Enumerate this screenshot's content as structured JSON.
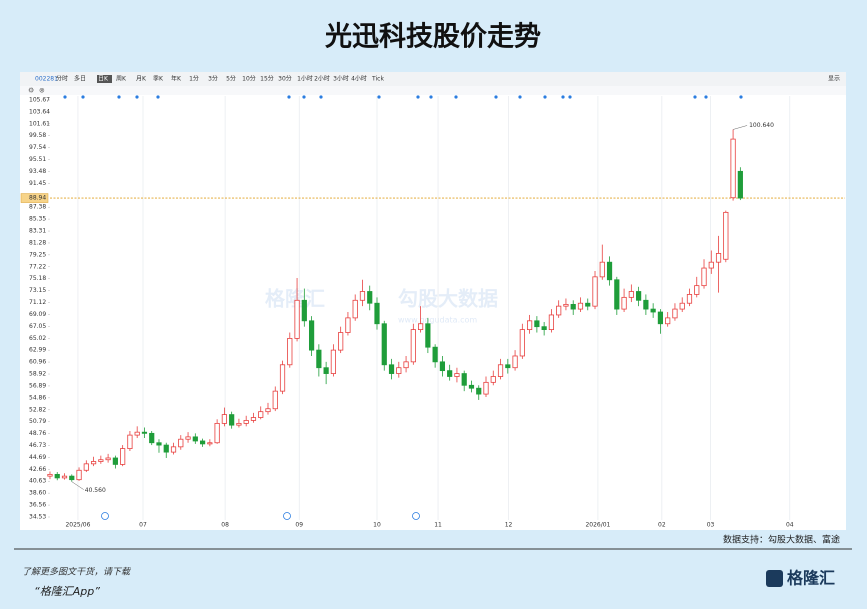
{
  "chart_data": {
    "type": "candlestick",
    "title": "光迅科技股价走势",
    "toolbar": {
      "code": "002281",
      "items": [
        "分时",
        "多日",
        "日K",
        "周K",
        "月K",
        "季K",
        "年K",
        "1分",
        "3分",
        "5分",
        "10分",
        "15分",
        "30分",
        "1小时",
        "2小时",
        "3小时",
        "4小时",
        "Tick"
      ],
      "right": "显示"
    },
    "up_color": "#e8403f",
    "down_color": "#1f9d3a",
    "open": [
      41.5,
      41.8,
      41.2,
      41.5,
      40.9,
      42.5,
      43.6,
      44.0,
      44.3,
      44.6,
      43.5,
      46.2,
      48.5,
      49.0,
      48.8,
      47.2,
      46.8,
      45.6,
      46.5,
      47.8,
      48.2,
      47.5,
      47.0,
      47.2,
      50.5,
      52.0,
      50.2,
      50.5,
      51.0,
      51.5,
      52.5,
      53.0,
      56.0,
      60.5,
      65.0,
      71.5,
      68.0,
      63.0,
      60.0,
      59.0,
      63.0,
      66.0,
      68.5,
      71.5,
      73.0,
      71.0,
      67.5,
      60.5,
      59.0,
      60.0,
      61.0,
      66.5,
      67.5,
      63.5,
      61.0,
      59.5,
      58.5,
      59.0,
      57.0,
      56.5,
      55.5,
      57.5,
      58.5,
      60.5,
      60.0,
      62.0,
      66.5,
      68.0,
      67.0,
      66.5,
      69.0,
      70.5,
      70.8,
      70.0,
      71.0,
      70.5,
      75.5,
      78.0,
      75.0,
      70.0,
      72.0,
      73.0,
      71.5,
      70.0,
      69.5,
      67.5,
      68.5,
      70.0,
      71.0,
      72.5,
      74.0,
      77.0,
      78.0,
      78.5,
      89.0,
      93.5
    ],
    "high": [
      42.3,
      42.2,
      42.0,
      41.8,
      43.0,
      44.2,
      44.8,
      45.0,
      45.3,
      45.0,
      46.8,
      49.2,
      50.0,
      49.8,
      49.2,
      47.8,
      47.2,
      47.2,
      48.5,
      49.0,
      48.8,
      47.9,
      47.8,
      51.2,
      53.2,
      52.5,
      51.3,
      51.8,
      52.3,
      53.4,
      54.0,
      56.8,
      61.2,
      66.0,
      75.3,
      73.5,
      68.8,
      64.0,
      61.0,
      64.0,
      67.0,
      69.5,
      72.5,
      75.0,
      74.0,
      72.0,
      68.0,
      61.5,
      61.0,
      62.0,
      67.5,
      70.5,
      68.5,
      64.0,
      62.0,
      60.5,
      60.0,
      59.5,
      57.8,
      57.0,
      58.5,
      59.5,
      61.5,
      61.5,
      63.0,
      67.5,
      69.0,
      68.8,
      67.8,
      70.0,
      71.5,
      71.8,
      71.5,
      72.0,
      71.8,
      76.5,
      81.0,
      79.0,
      75.5,
      73.5,
      74.2,
      73.8,
      72.5,
      71.0,
      70.0,
      69.5,
      71.0,
      72.0,
      73.5,
      75.5,
      78.5,
      80.0,
      82.5,
      86.8,
      100.64,
      94.2
    ],
    "low": [
      41.0,
      40.8,
      40.9,
      40.56,
      40.7,
      42.2,
      43.2,
      43.6,
      43.8,
      42.8,
      43.2,
      45.8,
      48.0,
      48.0,
      46.8,
      45.5,
      44.6,
      45.2,
      46.0,
      47.2,
      47.0,
      46.5,
      46.6,
      47.0,
      50.0,
      49.6,
      49.8,
      50.0,
      50.6,
      51.2,
      52.0,
      52.6,
      55.5,
      60.0,
      64.5,
      67.0,
      62.0,
      58.5,
      57.2,
      58.5,
      62.5,
      65.5,
      68.0,
      70.5,
      69.8,
      66.5,
      59.5,
      58.0,
      58.3,
      59.2,
      60.5,
      66.0,
      62.5,
      60.0,
      58.5,
      57.8,
      57.5,
      56.0,
      55.8,
      54.5,
      55.0,
      57.0,
      58.0,
      59.0,
      59.5,
      61.5,
      65.8,
      66.0,
      65.5,
      66.0,
      68.5,
      69.8,
      69.0,
      69.5,
      69.8,
      70.0,
      75.0,
      74.0,
      69.0,
      69.5,
      71.2,
      70.5,
      69.0,
      68.5,
      65.8,
      67.0,
      68.0,
      69.5,
      70.5,
      72.0,
      73.5,
      76.0,
      72.8,
      78.0,
      88.5,
      88.6
    ],
    "close": [
      41.8,
      41.2,
      41.5,
      40.9,
      42.5,
      43.6,
      44.0,
      44.3,
      44.6,
      43.5,
      46.2,
      48.5,
      49.0,
      48.8,
      47.2,
      46.8,
      45.6,
      46.5,
      47.8,
      48.2,
      47.5,
      47.0,
      47.2,
      50.5,
      52.0,
      50.2,
      50.5,
      51.0,
      51.5,
      52.5,
      53.0,
      56.0,
      60.5,
      65.0,
      71.5,
      68.0,
      63.0,
      60.0,
      59.0,
      63.0,
      66.0,
      68.5,
      71.5,
      73.0,
      71.0,
      67.5,
      60.5,
      59.0,
      60.0,
      61.0,
      66.5,
      67.5,
      63.5,
      61.0,
      59.5,
      58.5,
      59.0,
      57.0,
      56.5,
      55.5,
      57.5,
      58.5,
      60.5,
      60.0,
      62.0,
      66.5,
      68.0,
      67.0,
      66.5,
      69.0,
      70.5,
      70.8,
      70.0,
      71.0,
      70.5,
      75.5,
      78.0,
      75.0,
      70.0,
      72.0,
      73.0,
      71.5,
      70.0,
      69.5,
      67.5,
      68.5,
      70.0,
      71.0,
      72.5,
      74.0,
      77.0,
      78.0,
      79.5,
      86.5,
      99.0,
      88.94
    ],
    "max_label": {
      "value": 100.64,
      "label": "100.640"
    },
    "min_label": {
      "value": 40.56,
      "label": "40.560"
    },
    "current_price": {
      "value": 88.94,
      "label": "88.94"
    },
    "ylim": [
      34.53,
      105.67
    ],
    "yticks": [
      {
        "value": 105.67,
        "label": "105.67"
      },
      {
        "value": 103.64,
        "label": "103.64"
      },
      {
        "value": 101.61,
        "label": "101.61"
      },
      {
        "value": 99.58,
        "label": "99.58"
      },
      {
        "value": 97.54,
        "label": "97.54"
      },
      {
        "value": 95.51,
        "label": "95.51"
      },
      {
        "value": 93.48,
        "label": "93.48"
      },
      {
        "value": 91.45,
        "label": "91.45"
      },
      {
        "value": 87.38,
        "label": "87.38"
      },
      {
        "value": 85.35,
        "label": "85.35"
      },
      {
        "value": 83.31,
        "label": "83.31"
      },
      {
        "value": 81.28,
        "label": "81.28"
      },
      {
        "value": 79.25,
        "label": "79.25"
      },
      {
        "value": 77.22,
        "label": "77.22"
      },
      {
        "value": 75.18,
        "label": "75.18"
      },
      {
        "value": 73.15,
        "label": "73.15"
      },
      {
        "value": 71.12,
        "label": "71.12"
      },
      {
        "value": 69.09,
        "label": "69.09"
      },
      {
        "value": 67.05,
        "label": "67.05"
      },
      {
        "value": 65.02,
        "label": "65.02"
      },
      {
        "value": 62.99,
        "label": "62.99"
      },
      {
        "value": 60.96,
        "label": "60.96"
      },
      {
        "value": 58.92,
        "label": "58.92"
      },
      {
        "value": 56.89,
        "label": "56.89"
      },
      {
        "value": 54.86,
        "label": "54.86"
      },
      {
        "value": 52.82,
        "label": "52.82"
      },
      {
        "value": 50.79,
        "label": "50.79"
      },
      {
        "value": 48.76,
        "label": "48.76"
      },
      {
        "value": 46.73,
        "label": "46.73"
      },
      {
        "value": 44.69,
        "label": "44.69"
      },
      {
        "value": 42.66,
        "label": "42.66"
      },
      {
        "value": 40.63,
        "label": "40.63"
      },
      {
        "value": 38.6,
        "label": "38.60"
      },
      {
        "value": 36.56,
        "label": "36.56"
      },
      {
        "value": 34.53,
        "label": "34.53"
      }
    ],
    "xlim": [
      -3.85,
      109.4
    ],
    "xticks": [
      {
        "value": 3.85,
        "label": "2025/06"
      },
      {
        "value": 12.8,
        "label": "07"
      },
      {
        "value": 24.1,
        "label": "08"
      },
      {
        "value": 34.3,
        "label": "09"
      },
      {
        "value": 45.0,
        "label": "10"
      },
      {
        "value": 53.4,
        "label": "11"
      },
      {
        "value": 63.1,
        "label": "12"
      },
      {
        "value": 75.4,
        "label": "2026/01"
      },
      {
        "value": 84.2,
        "label": "02"
      },
      {
        "value": 90.9,
        "label": "03"
      },
      {
        "value": 101.8,
        "label": "04"
      }
    ],
    "grid": true,
    "watermark": [
      "格隆汇",
      "勾股大数据",
      "www.gogudata.com"
    ],
    "source": "数据支持：勾股大数据、富途"
  },
  "footer": {
    "line1": "了解更多图文干货，请下载",
    "line2": "“格隆汇App”",
    "logo": "格隆汇"
  }
}
